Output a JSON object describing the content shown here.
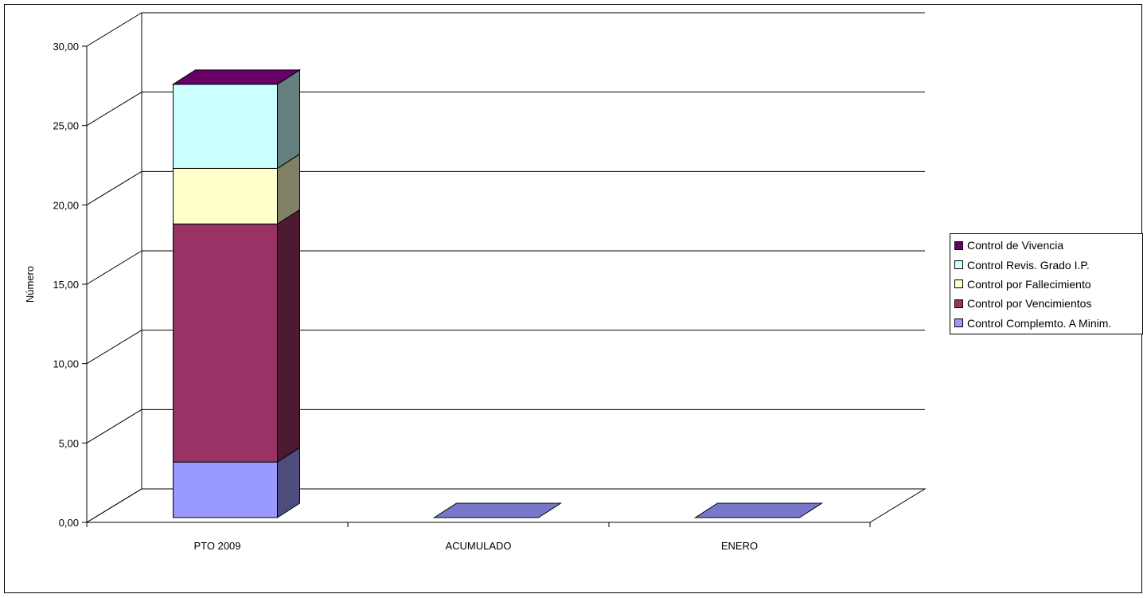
{
  "chart_data": {
    "type": "bar",
    "stacked": true,
    "three_d": true,
    "categories": [
      "PTO 2009",
      "ACUMULADO",
      "ENERO"
    ],
    "series": [
      {
        "name": "Control Complemto. A Minim.",
        "values": [
          3.5,
          0,
          0
        ],
        "color": "#9999ff"
      },
      {
        "name": "Control por Vencimientos",
        "values": [
          15.0,
          0,
          0
        ],
        "color": "#993366"
      },
      {
        "name": "Control por Fallecimiento",
        "values": [
          3.5,
          0,
          0
        ],
        "color": "#ffffcc"
      },
      {
        "name": "Control Revis. Grado I.P.",
        "values": [
          5.3,
          0,
          0
        ],
        "color": "#ccffff"
      },
      {
        "name": "Control de Vivencia",
        "values": [
          0,
          0,
          0
        ],
        "color": "#660066"
      }
    ],
    "ylabel": "Número",
    "xlabel": "",
    "ylim": [
      0,
      30
    ],
    "yticks": [
      "0,00",
      "5,00",
      "10,00",
      "15,00",
      "20,00",
      "25,00",
      "30,00"
    ],
    "grid": true,
    "legend_position": "right"
  }
}
